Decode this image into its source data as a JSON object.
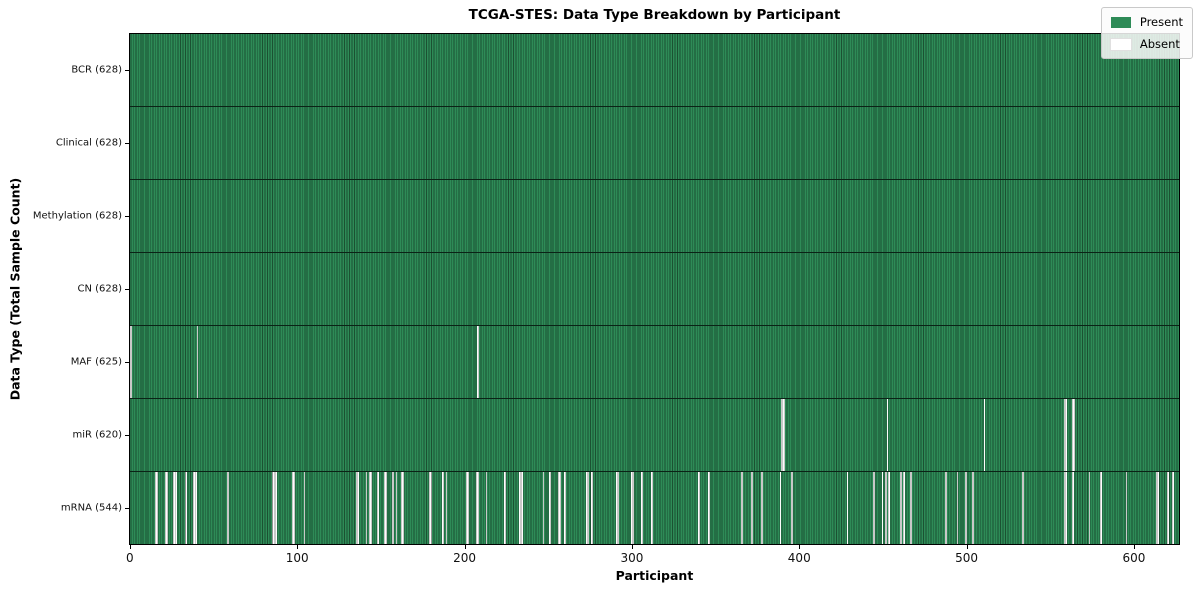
{
  "figure": {
    "title": "TCGA-STES: Data Type Breakdown by Participant",
    "xlabel": "Participant",
    "ylabel": "Data Type (Total Sample Count)"
  },
  "legend": {
    "items": [
      {
        "label": "Present",
        "color": "#2e8b57"
      },
      {
        "label": "Absent",
        "color": "#ffffff"
      }
    ]
  },
  "chart_data": {
    "type": "heatmap",
    "title": "TCGA-STES: Data Type Breakdown by Participant",
    "xlabel": "Participant",
    "ylabel": "Data Type (Total Sample Count)",
    "legend_position": "upper right",
    "legend": [
      {
        "label": "Present",
        "color": "#2e8b57"
      },
      {
        "label": "Absent",
        "color": "#ffffff"
      }
    ],
    "colors": {
      "present": "#2e8b57",
      "absent": "#fdfdfd",
      "bar_edge": "rgba(0,0,0,0.42)",
      "row_divider": "rgba(0,0,0,0.75)"
    },
    "n_participants": 628,
    "x_ticks": [
      0,
      100,
      200,
      300,
      400,
      500,
      600
    ],
    "x_range": [
      0,
      628
    ],
    "grid": false,
    "rows": [
      {
        "data_type": "BCR",
        "label": "BCR (628)",
        "present_count": 628,
        "absent_participants": []
      },
      {
        "data_type": "Clinical",
        "label": "Clinical (628)",
        "present_count": 628,
        "absent_participants": []
      },
      {
        "data_type": "Methylation",
        "label": "Methylation (628)",
        "present_count": 628,
        "absent_participants": []
      },
      {
        "data_type": "CN",
        "label": "CN (628)",
        "present_count": 628,
        "absent_participants": []
      },
      {
        "data_type": "MAF",
        "label": "MAF (625)",
        "present_count": 625,
        "absent_participants": [
          0,
          40,
          208
        ]
      },
      {
        "data_type": "miR",
        "label": "miR (620)",
        "present_count": 620,
        "absent_participants": [
          390,
          391,
          453,
          511,
          559,
          560,
          564,
          565
        ]
      },
      {
        "data_type": "mRNA",
        "label": "mRNA (544)",
        "present_count": 544,
        "absent_participants": [
          15,
          16,
          21,
          22,
          26,
          27,
          33,
          38,
          39,
          58,
          85,
          86,
          87,
          97,
          98,
          104,
          135,
          136,
          141,
          143,
          144,
          148,
          152,
          153,
          157,
          159,
          162,
          163,
          179,
          180,
          187,
          189,
          201,
          202,
          207,
          208,
          213,
          224,
          233,
          234,
          247,
          251,
          256,
          257,
          260,
          273,
          274,
          276,
          291,
          292,
          300,
          301,
          306,
          312,
          340,
          346,
          366,
          372,
          378,
          389,
          396,
          429,
          445,
          450,
          452,
          454,
          461,
          463,
          467,
          488,
          495,
          500,
          504,
          534,
          559,
          560,
          564,
          574,
          581,
          596,
          614,
          615,
          621,
          624
        ]
      }
    ]
  }
}
